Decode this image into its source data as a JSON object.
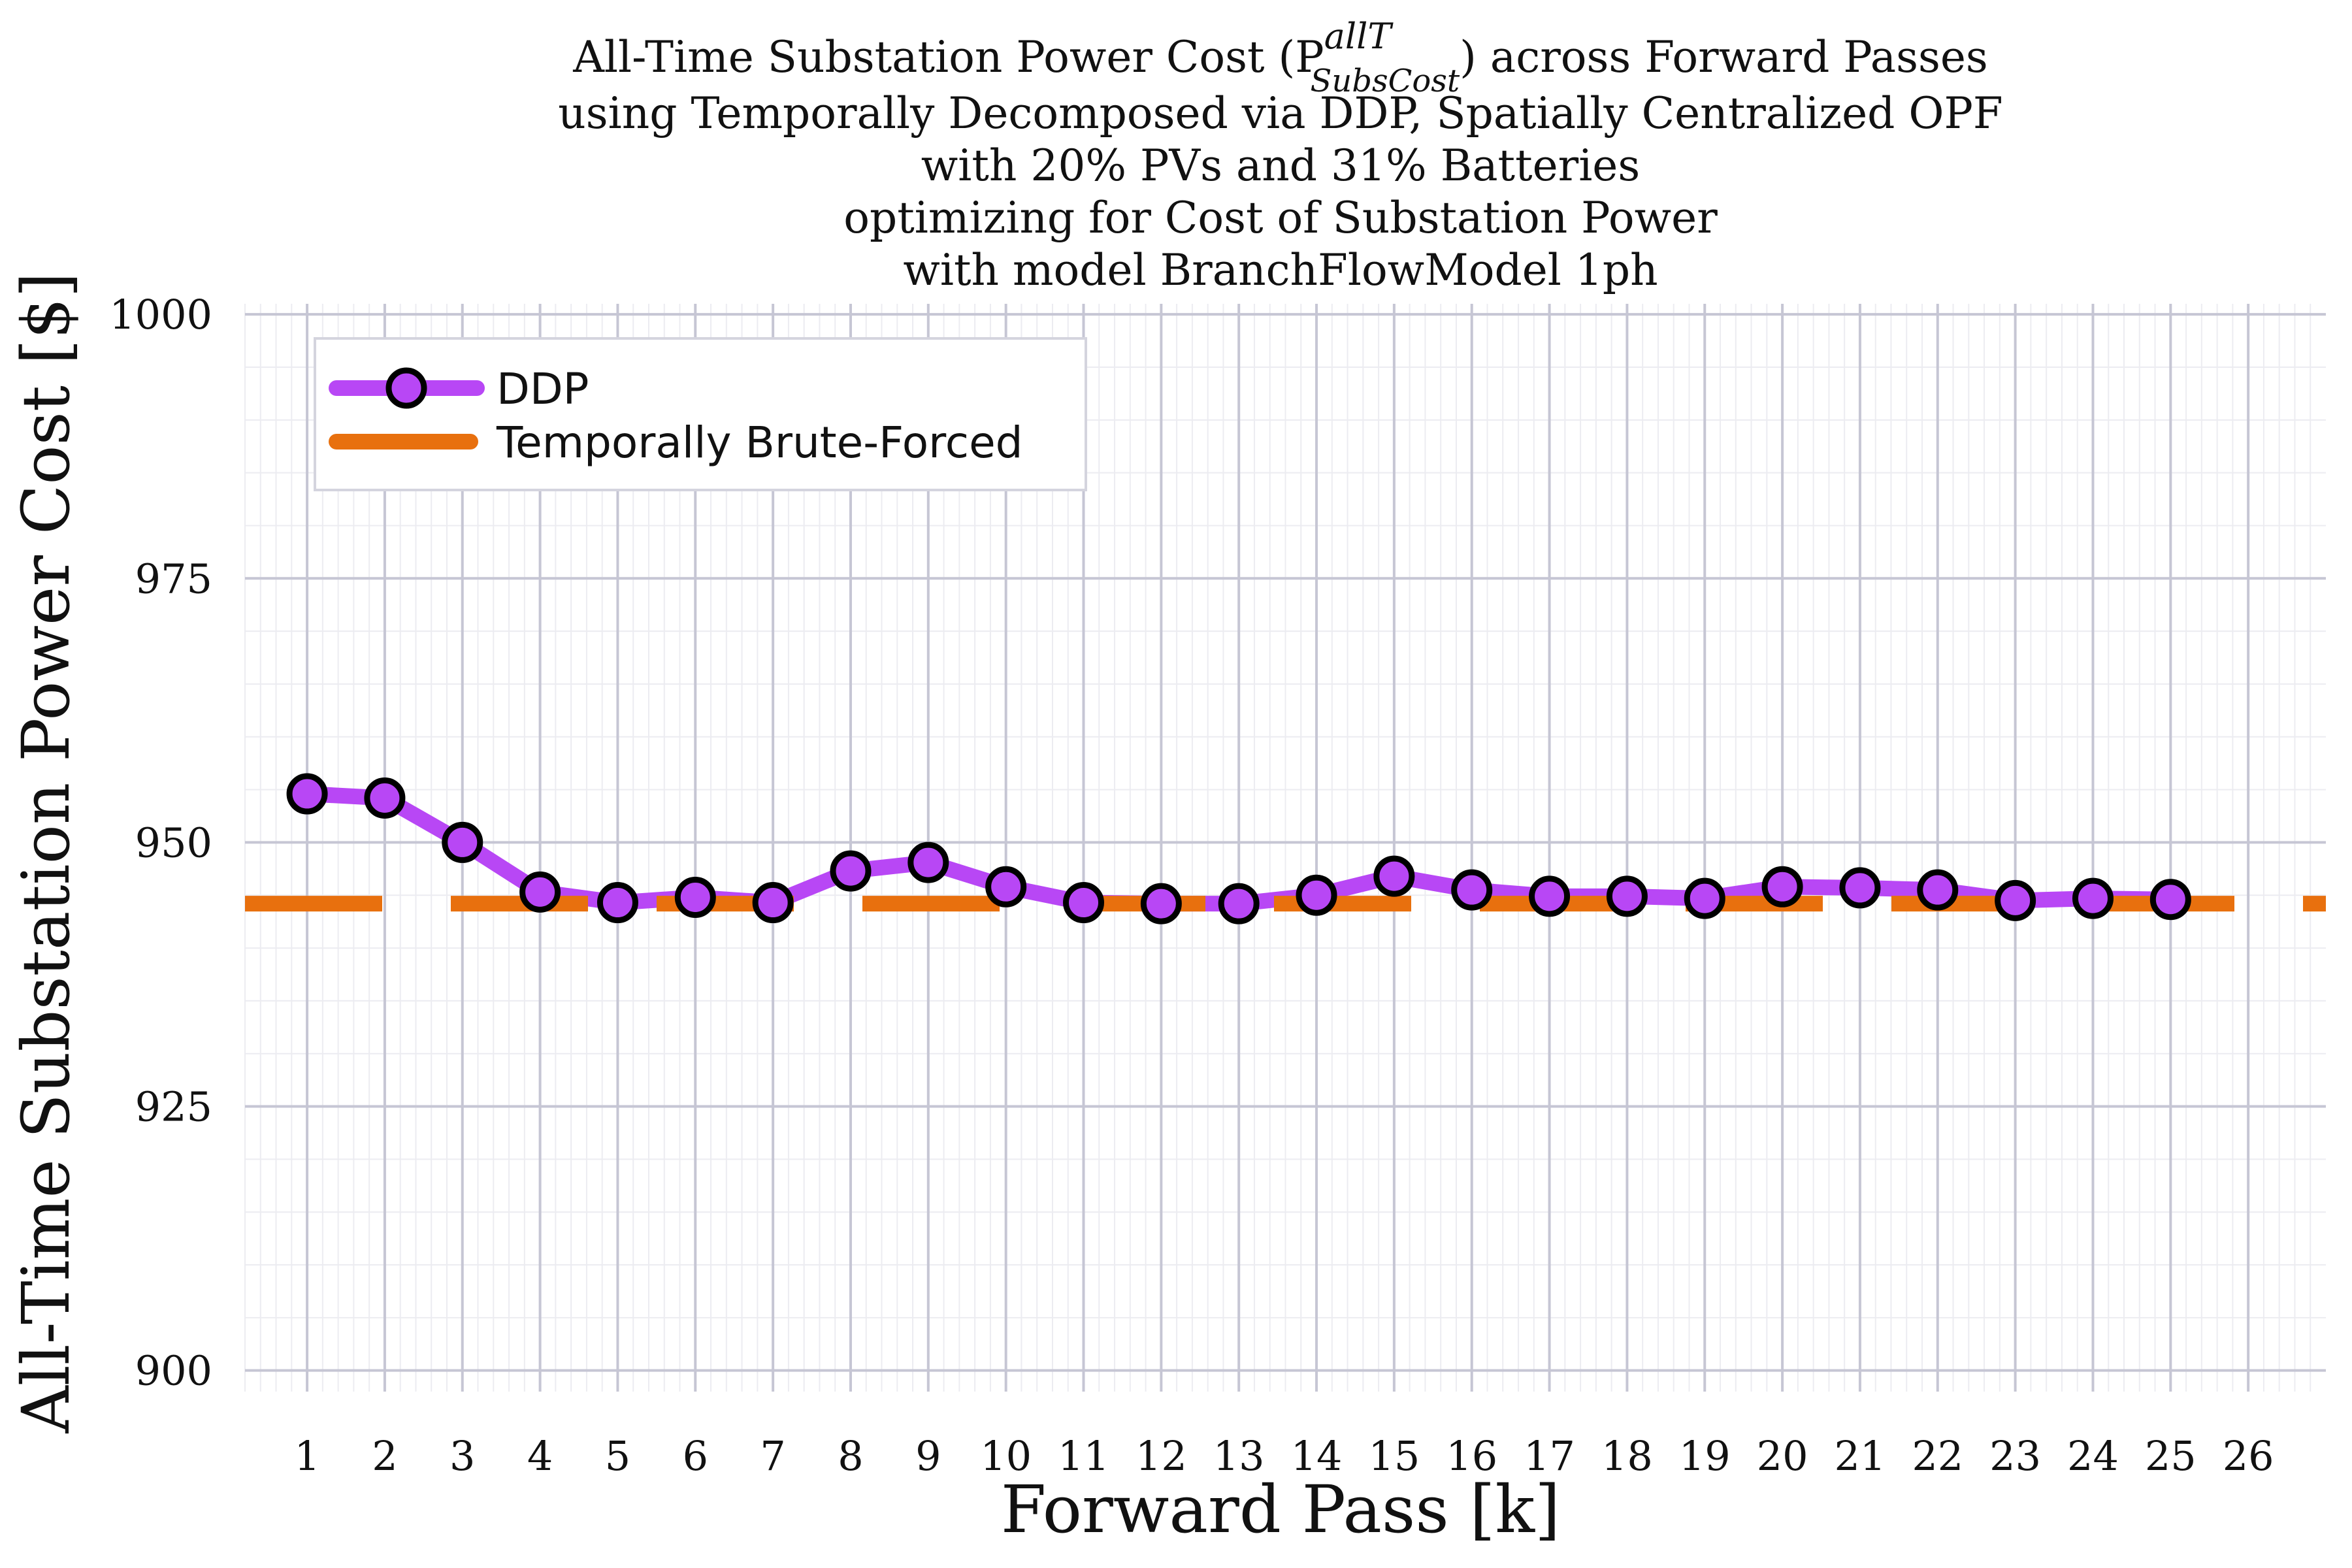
{
  "chart_data": {
    "type": "line",
    "title_lines": [
      "All-Time Substation Power Cost (P",
      "using Temporally Decomposed via DDP, Spatially Centralized OPF",
      "with 20% PVs and 31% Batteries",
      "optimizing for Cost of Substation Power",
      "with model BranchFlowModel 1ph"
    ],
    "title_symbol": {
      "sup": "allT",
      "sub": "SubsCost",
      "suffix": ") across Forward Passes"
    },
    "xlabel": "Forward Pass [k]",
    "ylabel": "All-Time Substation Power Cost [$]",
    "xlim": [
      0.2,
      27
    ],
    "ylim": [
      898,
      1001
    ],
    "x_ticks": [
      1,
      2,
      3,
      4,
      5,
      6,
      7,
      8,
      9,
      10,
      11,
      12,
      13,
      14,
      15,
      16,
      17,
      18,
      19,
      20,
      21,
      22,
      23,
      24,
      25,
      26
    ],
    "y_ticks": [
      900,
      925,
      950,
      975,
      1000
    ],
    "grid": "on (major and minor)",
    "legend_placement": "top-left",
    "series": [
      {
        "name": "DDP",
        "style": "solid line with circle markers",
        "color": "#b847f5",
        "marker_edge": "#000000",
        "x": [
          1,
          2,
          3,
          4,
          5,
          6,
          7,
          8,
          9,
          10,
          11,
          12,
          13,
          14,
          15,
          16,
          17,
          18,
          19,
          20,
          21,
          22,
          23,
          24,
          25
        ],
        "values": [
          954.6,
          954.2,
          950.0,
          945.3,
          944.3,
          944.8,
          944.3,
          947.3,
          948.1,
          945.8,
          944.3,
          944.2,
          944.2,
          945.0,
          946.8,
          945.5,
          944.9,
          944.9,
          944.7,
          945.8,
          945.7,
          945.5,
          944.5,
          944.7,
          944.6
        ]
      },
      {
        "name": "Temporally Brute-Forced",
        "style": "dashed line",
        "color": "#e8700e",
        "x": [
          0.2,
          27
        ],
        "values": [
          944.2,
          944.2
        ]
      }
    ]
  }
}
